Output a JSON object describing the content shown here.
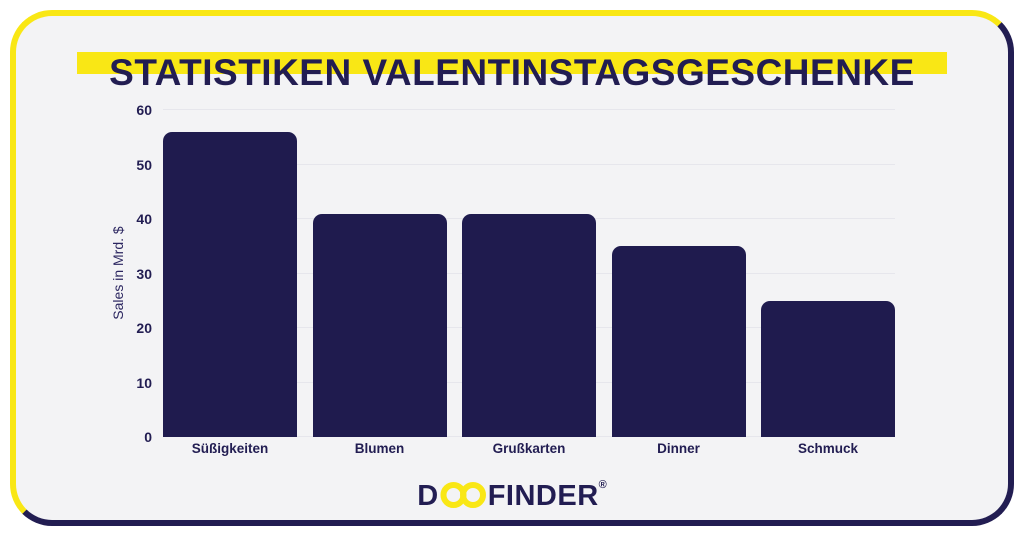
{
  "page": {
    "title": "STATISTIKEN VALENTINSTAGSGESCHENKE"
  },
  "chart_data": {
    "type": "bar",
    "title": "Statistiken Valentinstagsgeschenke",
    "categories": [
      "Süßigkeiten",
      "Blumen",
      "Grußkarten",
      "Dinner",
      "Schmuck"
    ],
    "values": [
      56,
      41,
      41,
      35,
      25
    ],
    "xlabel": "",
    "ylabel": "Sales in Mrd. $",
    "ylim": [
      0,
      60
    ],
    "yticks": [
      0,
      10,
      20,
      30,
      40,
      50,
      60
    ],
    "grid": true,
    "legend": false,
    "bar_color": "#1F1B4E"
  },
  "branding": {
    "logo_d": "D",
    "logo_oo_icon": "infinity-icon",
    "logo_finder": "FINDER",
    "registered": "®",
    "full_name": "DOOFINDER"
  },
  "colors": {
    "accent_yellow": "#F9E715",
    "navy": "#221D52",
    "bar_navy": "#1F1B4E",
    "card_background": "#F3F3F5",
    "gridline": "#E6E6EC",
    "page_background": "#FFFFFF"
  }
}
